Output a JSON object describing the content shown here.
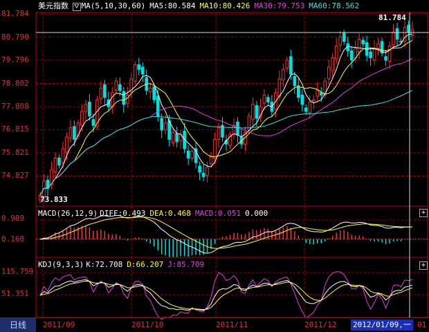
{
  "main_panel": {
    "title": "美元指数",
    "ma_label": "MA(5,10,30,60)",
    "ma5": "MA5:80.584",
    "ma10": "MA10:80.426",
    "ma30": "MA30:79.753",
    "ma60": "MA60:78.562",
    "y_ticks": [
      "81.784",
      "80.790",
      "79.796",
      "78.802",
      "77.808",
      "76.815",
      "75.821",
      "74.827"
    ],
    "high_label": "81.784",
    "low_label": "73.833"
  },
  "macd_panel": {
    "label": "MACD(26,12,9)",
    "diff": "DIFF:0.493",
    "dea": "DEA:0.468",
    "macd": "MACD:0.051",
    "zero": "0.000",
    "y_ticks": [
      "0.989",
      "0.160"
    ]
  },
  "kdj_panel": {
    "label": "KDJ(9,3,3)",
    "k": "K:72.708",
    "d": "D:66.207",
    "j": "J:85.709",
    "y_ticks": [
      "115.759",
      "51.351"
    ]
  },
  "footer": {
    "tab_label": "日线",
    "months": [
      "2011/09",
      "2011/10",
      "2011/11",
      "2011/12"
    ],
    "cursor_date": "2012/01/09,一",
    "cursor_tail": "01"
  },
  "colors": {
    "up": "#ff3030",
    "down": "#00e0e0",
    "ma5": "#ffffff",
    "ma10": "#ffff40",
    "ma30": "#e040e0",
    "ma60": "#40e0e0",
    "grid": "#a00000",
    "frame": "#c00000"
  },
  "icons": {
    "panel_add": "plus-icon",
    "ma_toggle": "ma-toggle-icon"
  },
  "chart_data": {
    "type": "candlestick",
    "title": "美元指数",
    "ylim": [
      73.833,
      81.784
    ],
    "x_months": [
      "2011/09",
      "2011/10",
      "2011/11",
      "2011/12"
    ],
    "close_series": [
      74.0,
      74.6,
      74.3,
      75.1,
      75.6,
      75.3,
      76.0,
      76.5,
      76.9,
      76.4,
      77.1,
      77.6,
      77.9,
      77.4,
      77.0,
      78.1,
      78.6,
      78.2,
      77.8,
      78.4,
      78.9,
      78.5,
      77.9,
      78.3,
      79.0,
      79.6,
      79.4,
      79.2,
      78.5,
      78.6,
      78.1,
      77.4,
      76.8,
      77.1,
      76.4,
      76.7,
      76.3,
      76.6,
      76.0,
      75.6,
      75.9,
      75.4,
      75.0,
      74.8,
      75.2,
      75.7,
      76.4,
      76.9,
      76.5,
      76.2,
      76.6,
      77.0,
      76.6,
      76.2,
      76.7,
      77.4,
      77.9,
      77.3,
      77.8,
      78.3,
      78.0,
      77.6,
      78.4,
      79.0,
      79.4,
      79.8,
      79.2,
      78.7,
      78.2,
      77.9,
      77.6,
      78.0,
      78.1,
      78.5,
      78.3,
      78.9,
      79.5,
      79.9,
      80.4,
      80.8,
      80.6,
      80.2,
      79.8,
      80.3,
      80.7,
      80.5,
      80.0,
      79.9,
      80.3,
      80.5,
      80.1,
      79.8,
      80.4,
      81.0,
      80.7,
      80.6,
      81.2,
      81.0,
      81.1
    ],
    "macd_ylim": [
      -0.6,
      1.2
    ],
    "kdj_ylim": [
      0,
      120
    ]
  }
}
